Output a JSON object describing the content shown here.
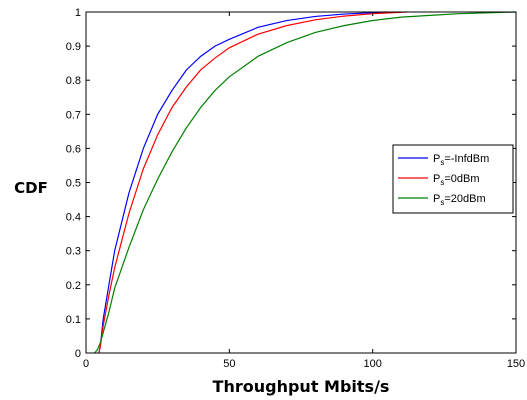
{
  "chart_data": {
    "type": "line",
    "xlabel": "Throughput Mbits/s",
    "ylabel": "CDF",
    "xlim": [
      0,
      150
    ],
    "ylim": [
      0,
      1
    ],
    "x_ticks": [
      "0",
      "50",
      "100",
      "150"
    ],
    "y_ticks": [
      "0",
      "0.1",
      "0.2",
      "0.3",
      "0.4",
      "0.5",
      "0.6",
      "0.7",
      "0.8",
      "0.9",
      "1"
    ],
    "grid": false,
    "legend_position": "right",
    "series": [
      {
        "name_main": "P",
        "name_sub": "s",
        "name_rest": "=-InfdBm",
        "color": "#0000ff",
        "x": [
          4.5,
          5,
          6,
          8,
          10,
          15,
          20,
          25,
          30,
          35,
          40,
          45,
          50,
          60,
          70,
          80,
          90,
          100,
          105
        ],
        "y": [
          0,
          0.02,
          0.1,
          0.2,
          0.3,
          0.47,
          0.6,
          0.7,
          0.77,
          0.83,
          0.87,
          0.9,
          0.92,
          0.955,
          0.975,
          0.987,
          0.994,
          0.998,
          1
        ]
      },
      {
        "name_main": "P",
        "name_sub": "s",
        "name_rest": "=0dBm",
        "color": "#ff0000",
        "x": [
          4.5,
          5,
          6,
          8,
          10,
          15,
          20,
          25,
          30,
          35,
          40,
          45,
          50,
          60,
          70,
          80,
          90,
          100,
          112
        ],
        "y": [
          0,
          0.02,
          0.08,
          0.17,
          0.25,
          0.41,
          0.54,
          0.64,
          0.72,
          0.78,
          0.83,
          0.865,
          0.895,
          0.935,
          0.96,
          0.977,
          0.988,
          0.995,
          1
        ]
      },
      {
        "name_main": "P",
        "name_sub": "s",
        "name_rest": "=20dBm",
        "color": "#008000",
        "x": [
          3,
          4,
          5,
          6,
          8,
          10,
          15,
          20,
          25,
          30,
          35,
          40,
          45,
          50,
          60,
          70,
          80,
          90,
          100,
          110,
          120,
          130,
          150
        ],
        "y": [
          0,
          0.01,
          0.03,
          0.06,
          0.12,
          0.19,
          0.31,
          0.42,
          0.51,
          0.59,
          0.66,
          0.72,
          0.77,
          0.81,
          0.87,
          0.91,
          0.94,
          0.96,
          0.975,
          0.985,
          0.99,
          0.995,
          1
        ]
      }
    ]
  }
}
